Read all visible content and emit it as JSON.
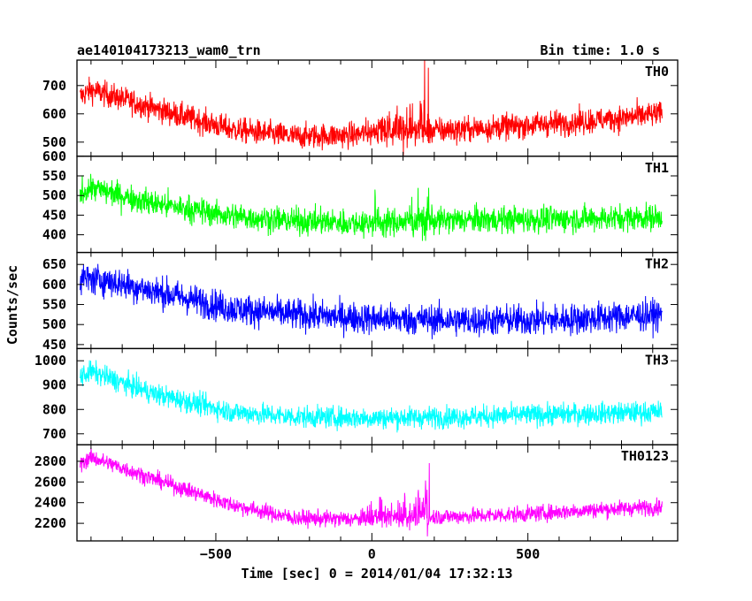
{
  "header": {
    "title": "ae140104173213_wam0_trn",
    "bin_time": "Bin time: 1.0 s"
  },
  "chart_data": {
    "type": "line",
    "xlabel": "Time [sec] 0 = 2014/01/04 17:32:13",
    "ylabel": "Counts/sec",
    "xlim": [
      -945,
      980
    ],
    "xticks": [
      -500,
      0,
      500
    ],
    "x_start": -935,
    "x_end": 930,
    "panels": [
      {
        "name": "TH0",
        "color": "#ff0000",
        "ylim": [
          450,
          790
        ],
        "yticks": [
          500,
          600,
          700
        ],
        "trend": [
          [
            -935,
            660
          ],
          [
            -900,
            685
          ],
          [
            -700,
            620
          ],
          [
            -450,
            545
          ],
          [
            -250,
            520
          ],
          [
            -50,
            525
          ],
          [
            0,
            540
          ],
          [
            170,
            540
          ],
          [
            300,
            545
          ],
          [
            500,
            560
          ],
          [
            700,
            575
          ],
          [
            930,
            600
          ]
        ],
        "noise": 40,
        "bursts": [
          [
            20,
            90,
            50
          ],
          [
            100,
            60,
            70
          ],
          [
            150,
            60,
            90
          ],
          [
            175,
            20,
            180
          ]
        ]
      },
      {
        "name": "TH1",
        "color": "#00ff00",
        "ylim": [
          355,
          600
        ],
        "yticks": [
          400,
          450,
          500,
          550,
          600
        ],
        "trend": [
          [
            -935,
            505
          ],
          [
            -900,
            520
          ],
          [
            -700,
            480
          ],
          [
            -450,
            448
          ],
          [
            -250,
            435
          ],
          [
            -50,
            430
          ],
          [
            0,
            430
          ],
          [
            300,
            438
          ],
          [
            600,
            440
          ],
          [
            930,
            445
          ]
        ],
        "noise": 30,
        "bursts": [
          [
            15,
            40,
            45
          ],
          [
            150,
            60,
            45
          ],
          [
            175,
            20,
            90
          ]
        ]
      },
      {
        "name": "TH2",
        "color": "#0000ff",
        "ylim": [
          440,
          680
        ],
        "yticks": [
          450,
          500,
          550,
          600,
          650
        ],
        "trend": [
          [
            -935,
            615
          ],
          [
            -850,
            610
          ],
          [
            -650,
            575
          ],
          [
            -450,
            540
          ],
          [
            -250,
            525
          ],
          [
            0,
            515
          ],
          [
            300,
            510
          ],
          [
            600,
            512
          ],
          [
            930,
            525
          ]
        ],
        "noise": 35,
        "bursts": []
      },
      {
        "name": "TH3",
        "color": "#00ffff",
        "ylim": [
          655,
          1050
        ],
        "yticks": [
          700,
          800,
          900,
          1000
        ],
        "trend": [
          [
            -935,
            935
          ],
          [
            -900,
            955
          ],
          [
            -700,
            865
          ],
          [
            -450,
            790
          ],
          [
            -250,
            770
          ],
          [
            0,
            765
          ],
          [
            300,
            770
          ],
          [
            600,
            780
          ],
          [
            930,
            790
          ]
        ],
        "noise": 40,
        "bursts": []
      },
      {
        "name": "TH0123",
        "color": "#ff00ff",
        "ylim": [
          2030,
          2960
        ],
        "yticks": [
          2200,
          2400,
          2600,
          2800
        ],
        "trend": [
          [
            -935,
            2770
          ],
          [
            -900,
            2840
          ],
          [
            -700,
            2630
          ],
          [
            -450,
            2380
          ],
          [
            -250,
            2250
          ],
          [
            -50,
            2240
          ],
          [
            0,
            2250
          ],
          [
            300,
            2270
          ],
          [
            500,
            2290
          ],
          [
            700,
            2330
          ],
          [
            930,
            2360
          ]
        ],
        "noise": 70,
        "bursts": [
          [
            20,
            90,
            120
          ],
          [
            100,
            60,
            150
          ],
          [
            150,
            60,
            150
          ],
          [
            180,
            20,
            400
          ]
        ]
      }
    ]
  }
}
